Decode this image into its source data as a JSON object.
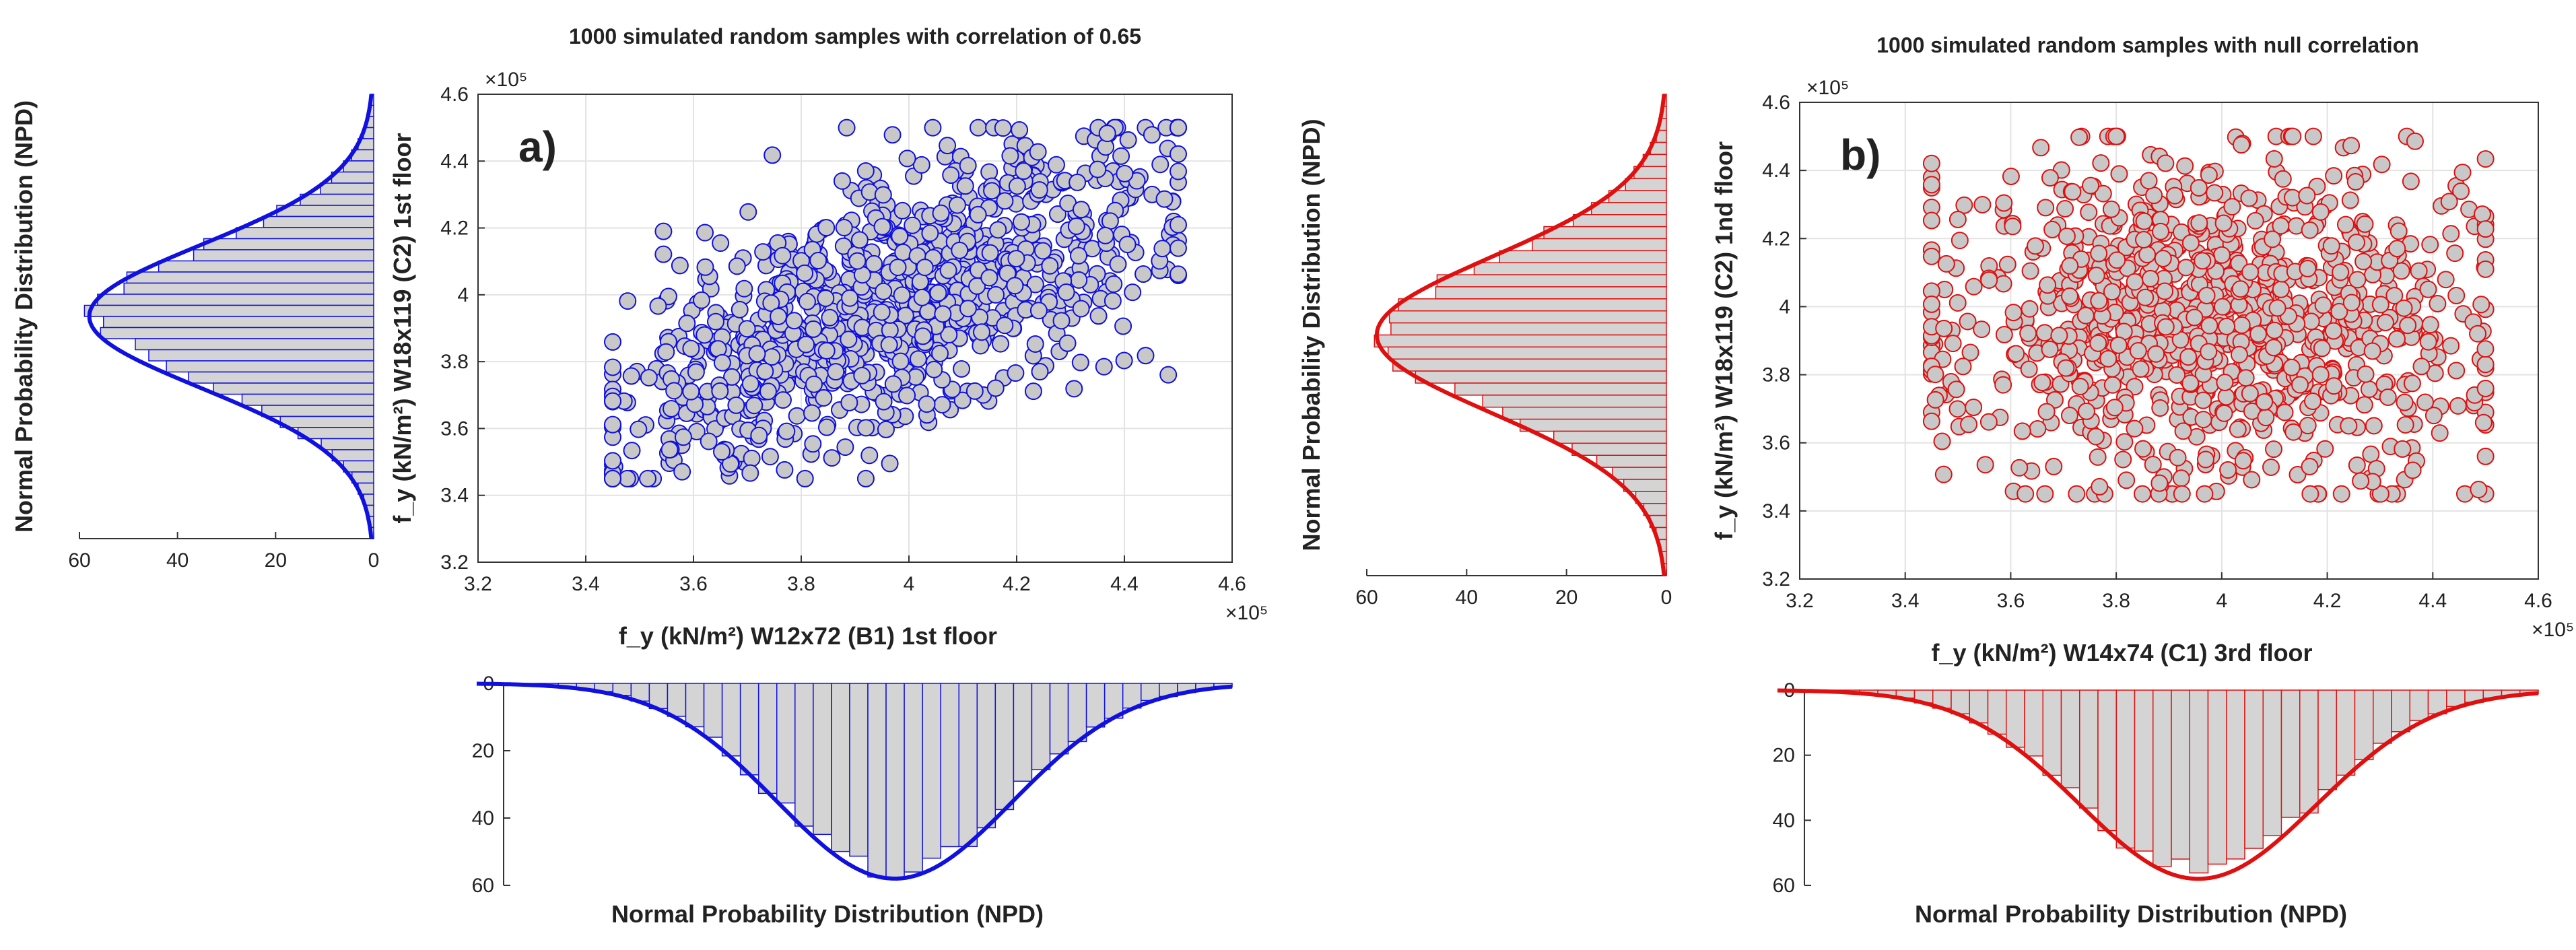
{
  "colors": {
    "panel_a": "#1010e0",
    "panel_b": "#e01010",
    "marker_fill": "#c8c8c8",
    "hist_fill": "#d4d4d4",
    "grid": "#e3e3e3",
    "axis": "#333333"
  },
  "chart_data": [
    {
      "id": "a",
      "type": "scatter",
      "panel_label": "a)",
      "title": "1000 simulated random samples with correlation of 0.65",
      "xlabel": "f_y (kN/m²) W12x72 (B1) 1st floor",
      "ylabel": "f_y (kN/m²) W18x119 (C2) 1st floor",
      "x_exponent": "×10⁵",
      "y_exponent": "×10⁵",
      "xlim": [
        3.2,
        4.6
      ],
      "ylim": [
        3.2,
        4.6
      ],
      "xticks": [
        "3.2",
        "3.4",
        "3.6",
        "3.8",
        "4",
        "4.2",
        "4.4",
        "4.6"
      ],
      "yticks": [
        "3.2",
        "3.4",
        "3.6",
        "3.8",
        "4",
        "4.2",
        "4.4",
        "4.6"
      ],
      "n_samples": 1000,
      "correlation": 0.65,
      "sample_range": [
        3.45,
        4.5
      ],
      "marker_color": "#1010e0",
      "marginal_left": {
        "type": "histogram",
        "orientation": "horizontal",
        "ylabel": "Normal Probability Distribution (NPD)",
        "ticks": [
          "60",
          "40",
          "20",
          "0"
        ],
        "range": [
          60,
          0
        ],
        "bins": 40,
        "peak": 58
      },
      "marginal_bottom": {
        "type": "histogram",
        "orientation": "vertical-down",
        "xlabel": "Normal Probability Distribution (NPD)",
        "ticks": [
          "0",
          "20",
          "40",
          "60"
        ],
        "range": [
          0,
          60
        ],
        "bins": 40,
        "peak": 58
      }
    },
    {
      "id": "b",
      "type": "scatter",
      "panel_label": "b)",
      "title": "1000 simulated random samples with null correlation",
      "xlabel": "f_y (kN/m²) W14x74 (C1) 3rd floor",
      "ylabel": "f_y (kN/m²) W18x119 (C2) 1nd floor",
      "x_exponent": "×10⁵",
      "y_exponent": "×10⁵",
      "xlim": [
        3.2,
        4.6
      ],
      "ylim": [
        3.2,
        4.6
      ],
      "xticks": [
        "3.2",
        "3.4",
        "3.6",
        "3.8",
        "4",
        "4.2",
        "4.4",
        "4.6"
      ],
      "yticks": [
        "3.2",
        "3.4",
        "3.6",
        "3.8",
        "4",
        "4.2",
        "4.4",
        "4.6"
      ],
      "n_samples": 1000,
      "correlation": 0,
      "sample_range": [
        3.45,
        4.5
      ],
      "marker_color": "#e01010",
      "marginal_left": {
        "type": "histogram",
        "orientation": "horizontal",
        "ylabel": "Normal Probability Distribution (NPD)",
        "ticks": [
          "60",
          "40",
          "20",
          "0"
        ],
        "range": [
          60,
          0
        ],
        "bins": 40,
        "peak": 58
      },
      "marginal_bottom": {
        "type": "histogram",
        "orientation": "vertical-down",
        "xlabel": "Normal Probability Distribution (NPD)",
        "ticks": [
          "0",
          "20",
          "40",
          "60"
        ],
        "range": [
          0,
          60
        ],
        "bins": 40,
        "peak": 58
      }
    }
  ]
}
